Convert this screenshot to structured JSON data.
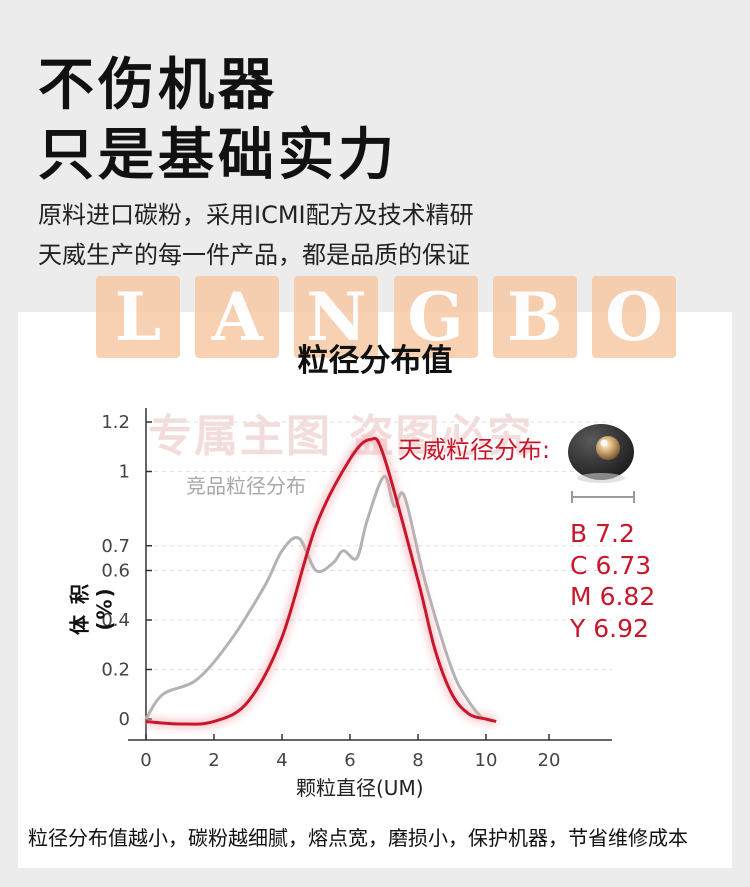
{
  "header": {
    "title_line1": "不伤机器",
    "title_line2": "只是基础实力",
    "subtitle_line1": "原料进口碳粉，采用ICMI配方及技术精研",
    "subtitle_line2": "天威生产的每一件产品，都是品质的保证"
  },
  "watermark": {
    "letters": [
      "L",
      "A",
      "N",
      "G",
      "B",
      "O"
    ],
    "stamp_text": "专属主图 盗图必究"
  },
  "colors": {
    "accent_red": "#c8172b",
    "competitor_gray": "#b3b3b3",
    "watermark_orange": "#f6c9a4"
  },
  "chart_data": {
    "type": "line",
    "title": "粒径分布值",
    "xlabel": "颗粒直径(UM)",
    "ylabel": "体 积 (%)",
    "x_ticks": [
      "0",
      "2",
      "4",
      "6",
      "8",
      "10",
      "20"
    ],
    "y_ticks": [
      "0",
      "0.2",
      "0.4",
      "0.6",
      "0.7",
      "1",
      "1.2"
    ],
    "y_tick_values": [
      0,
      0.2,
      0.4,
      0.6,
      0.7,
      1,
      1.2
    ],
    "series": [
      {
        "name": "天威粒径分布:",
        "color": "#c8172b",
        "points": [
          [
            0,
            -0.01
          ],
          [
            1,
            -0.02
          ],
          [
            2,
            -0.01
          ],
          [
            3,
            0.07
          ],
          [
            4,
            0.33
          ],
          [
            5,
            0.78
          ],
          [
            6,
            1.05
          ],
          [
            6.6,
            1.13
          ],
          [
            7,
            1.06
          ],
          [
            8,
            0.56
          ],
          [
            8.5,
            0.28
          ],
          [
            9,
            0.1
          ],
          [
            9.5,
            0.02
          ],
          [
            10,
            0
          ],
          [
            10.3,
            -0.01
          ]
        ]
      },
      {
        "name": "竞品粒径分布",
        "color": "#b3b3b3",
        "points": [
          [
            0,
            0
          ],
          [
            0.5,
            0.1
          ],
          [
            1.5,
            0.16
          ],
          [
            2.5,
            0.32
          ],
          [
            3.5,
            0.54
          ],
          [
            4,
            0.68
          ],
          [
            4.5,
            0.73
          ],
          [
            5,
            0.6
          ],
          [
            5.5,
            0.63
          ],
          [
            5.8,
            0.68
          ],
          [
            6.2,
            0.65
          ],
          [
            6.5,
            0.8
          ],
          [
            7,
            0.98
          ],
          [
            7.3,
            0.86
          ],
          [
            7.6,
            0.9
          ],
          [
            8.2,
            0.56
          ],
          [
            9,
            0.2
          ],
          [
            9.5,
            0.07
          ],
          [
            9.9,
            0
          ]
        ]
      }
    ],
    "metrics": [
      {
        "label": "B",
        "value": "7.2"
      },
      {
        "label": "C",
        "value": "6.73"
      },
      {
        "label": "M",
        "value": "6.82"
      },
      {
        "label": "Y",
        "value": "6.92"
      }
    ]
  },
  "footer": {
    "text": "粒径分布值越小，碳粉越细腻，熔点宽，磨损小，保护机器，节省维修成本"
  }
}
